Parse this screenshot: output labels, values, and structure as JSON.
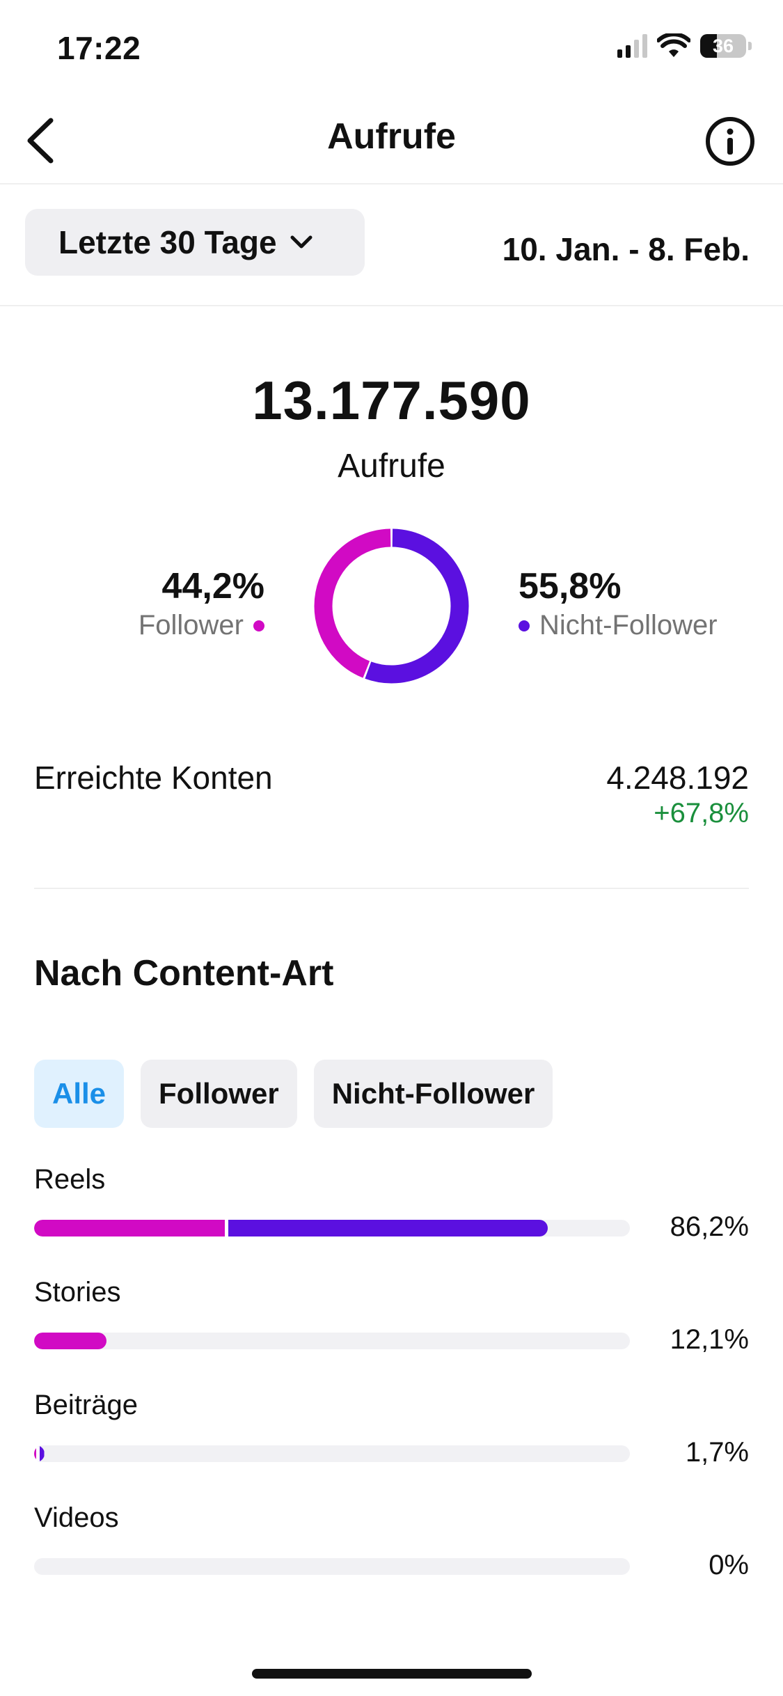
{
  "status_bar": {
    "time": "17:22",
    "battery_level": "36",
    "icons": [
      "signal-icon",
      "wifi-icon",
      "battery-icon"
    ]
  },
  "nav": {
    "back_icon": "chevron-left-icon",
    "title": "Aufrufe",
    "info_icon": "info-circle-icon"
  },
  "range": {
    "label": "Letzte 30 Tage",
    "dropdown_icon": "chevron-down-icon",
    "dates": "10. Jan. - 8. Feb."
  },
  "summary": {
    "total_value": "13.177.590",
    "total_label": "Aufrufe",
    "follower_pct": "44,2%",
    "follower_label": "Follower",
    "non_follower_pct": "55,8%",
    "non_follower_label": "Nicht-Follower",
    "follower_share": 44.2,
    "non_follower_share": 55.8
  },
  "reach": {
    "label": "Erreichte Konten",
    "value": "4.248.192",
    "delta": "+67,8%"
  },
  "content_type": {
    "title": "Nach Content-Art",
    "tabs": [
      {
        "label": "Alle",
        "active": true
      },
      {
        "label": "Follower",
        "active": false
      },
      {
        "label": "Nicht-Follower",
        "active": false
      }
    ],
    "rows": [
      {
        "label": "Reels",
        "pct_text": "86,2%",
        "total": 86.2,
        "follower": 32.0,
        "non_follower": 54.2
      },
      {
        "label": "Stories",
        "pct_text": "12,1%",
        "total": 12.1,
        "follower": 12.1,
        "non_follower": 0
      },
      {
        "label": "Beiträge",
        "pct_text": "1,7%",
        "total": 1.7,
        "follower": 0.3,
        "non_follower": 1.4
      },
      {
        "label": "Videos",
        "pct_text": "0%",
        "total": 0,
        "follower": 0,
        "non_follower": 0
      }
    ]
  },
  "colors": {
    "follower": "#d10ac4",
    "non_follower": "#5b10e0",
    "positive": "#1a8f3c",
    "active_tab_text": "#1a8fe8",
    "active_tab_bg": "#e0f1fe"
  }
}
